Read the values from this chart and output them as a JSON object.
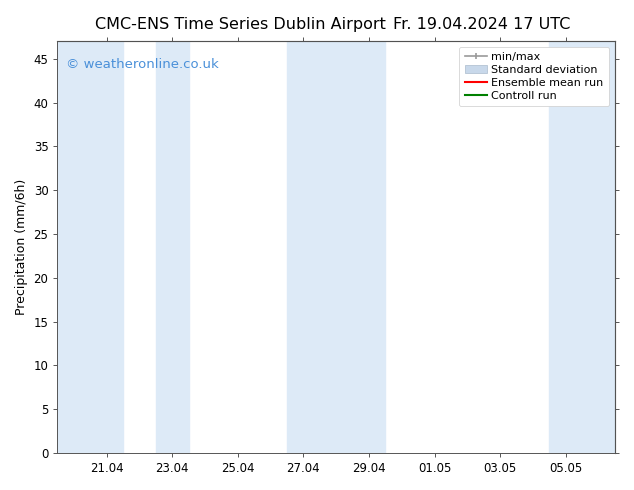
{
  "title": "CMC-ENS Time Series Dublin Airport",
  "title_right": "Fr. 19.04.2024 17 UTC",
  "ylabel": "Precipitation (mm/6h)",
  "watermark": "© weatheronline.co.uk",
  "background_color": "#ffffff",
  "plot_bg_color": "#ffffff",
  "ylim": [
    0,
    47
  ],
  "yticks": [
    0,
    5,
    10,
    15,
    20,
    25,
    30,
    35,
    40,
    45
  ],
  "band_color": "#ddeaf7",
  "band_positions": [
    [
      19.5,
      21.5
    ],
    [
      22.5,
      23.5
    ],
    [
      26.5,
      28.5
    ],
    [
      28.5,
      29.5
    ],
    [
      34.5,
      35.5
    ],
    [
      35.5,
      37.5
    ]
  ],
  "xlim": [
    19.5,
    36.5
  ],
  "xtick_vals": [
    21,
    23,
    25,
    27,
    29,
    31,
    33,
    35
  ],
  "xtick_labels": [
    "21.04",
    "23.04",
    "25.04",
    "27.04",
    "29.04",
    "01.05",
    "03.05",
    "05.05"
  ],
  "title_fontsize": 11.5,
  "axis_label_fontsize": 9,
  "tick_fontsize": 8.5,
  "watermark_color": "#4a90d9",
  "watermark_fontsize": 9.5,
  "legend_fontsize": 8,
  "minmax_color": "#999999",
  "stddev_color": "#c8d8ea",
  "ensemble_color": "#ff0000",
  "control_color": "#008000"
}
